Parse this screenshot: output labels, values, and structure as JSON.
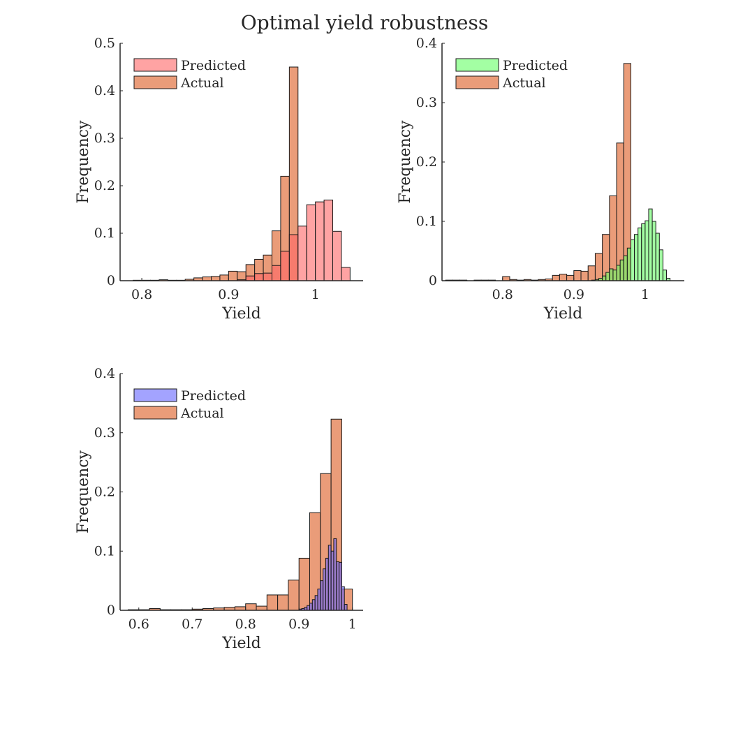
{
  "figure": {
    "title": "Optimal yield robustness"
  },
  "colors": {
    "axis": "#262626",
    "actual": "#E8916A",
    "predicted_red": "#FF6666",
    "predicted_green": "#66FF66",
    "predicted_blue": "#6666FF",
    "bar_edge": "#1a1a1a"
  },
  "chart_data": [
    {
      "type": "bar",
      "subtype": "histogram",
      "xlabel": "Yield",
      "ylabel": "Frequency",
      "xlim": [
        0.775,
        1.055
      ],
      "ylim": [
        0,
        0.5
      ],
      "xticks": [
        0.8,
        0.9,
        1
      ],
      "xtick_labels": [
        "0.8",
        "0.9",
        "1"
      ],
      "yticks": [
        0,
        0.1,
        0.2,
        0.3,
        0.4,
        0.5
      ],
      "ytick_labels": [
        "0",
        "0.1",
        "0.2",
        "0.3",
        "0.4",
        "0.5"
      ],
      "legend": {
        "placement": "top-left",
        "entries": [
          "Predicted",
          "Actual"
        ]
      },
      "series": [
        {
          "name": "Actual",
          "color_key": "actual",
          "alpha": 0.9,
          "bin_edges": [
            0.79,
            0.8,
            0.81,
            0.82,
            0.83,
            0.84,
            0.85,
            0.86,
            0.87,
            0.88,
            0.89,
            0.9,
            0.91,
            0.92,
            0.93,
            0.94,
            0.95,
            0.96,
            0.97,
            0.98
          ],
          "values": [
            0.001,
            0.001,
            0.001,
            0.002,
            0.001,
            0.001,
            0.003,
            0.006,
            0.008,
            0.009,
            0.012,
            0.02,
            0.019,
            0.034,
            0.045,
            0.054,
            0.105,
            0.22,
            0.45
          ]
        },
        {
          "name": "Predicted",
          "color_key": "predicted_red",
          "alpha": 0.6,
          "bin_edges": [
            0.91,
            0.92,
            0.93,
            0.94,
            0.95,
            0.96,
            0.97,
            0.98,
            0.99,
            1.0,
            1.01,
            1.02,
            1.03,
            1.04
          ],
          "values": [
            0.002,
            0.01,
            0.015,
            0.016,
            0.032,
            0.062,
            0.097,
            0.115,
            0.16,
            0.166,
            0.17,
            0.104,
            0.028
          ]
        }
      ]
    },
    {
      "type": "bar",
      "subtype": "histogram",
      "xlabel": "Yield",
      "ylabel": "Frequency",
      "xlim": [
        0.715,
        1.055
      ],
      "ylim": [
        0,
        0.4
      ],
      "xticks": [
        0.8,
        0.9,
        1
      ],
      "xtick_labels": [
        "0.8",
        "0.9",
        "1"
      ],
      "yticks": [
        0,
        0.1,
        0.2,
        0.3,
        0.4
      ],
      "ytick_labels": [
        "0",
        "0.1",
        "0.2",
        "0.3",
        "0.4"
      ],
      "legend": {
        "placement": "top-left",
        "entries": [
          "Predicted",
          "Actual"
        ]
      },
      "series": [
        {
          "name": "Actual",
          "color_key": "actual",
          "alpha": 0.9,
          "bin_edges": [
            0.7,
            0.71,
            0.72,
            0.73,
            0.74,
            0.75,
            0.76,
            0.77,
            0.78,
            0.79,
            0.8,
            0.81,
            0.82,
            0.83,
            0.84,
            0.85,
            0.86,
            0.87,
            0.88,
            0.89,
            0.9,
            0.91,
            0.92,
            0.93,
            0.94,
            0.95,
            0.96,
            0.97,
            0.98
          ],
          "values": [
            0.0,
            0.0,
            0.001,
            0.001,
            0.001,
            0.0,
            0.001,
            0.001,
            0.001,
            0.0,
            0.007,
            0.002,
            0.001,
            0.002,
            0.001,
            0.002,
            0.003,
            0.009,
            0.011,
            0.009,
            0.017,
            0.016,
            0.025,
            0.046,
            0.078,
            0.143,
            0.232,
            0.366
          ]
        },
        {
          "name": "Predicted",
          "color_key": "predicted_green",
          "alpha": 0.6,
          "bin_edges": [
            0.925,
            0.93,
            0.935,
            0.94,
            0.945,
            0.95,
            0.955,
            0.96,
            0.965,
            0.97,
            0.975,
            0.98,
            0.985,
            0.99,
            0.995,
            1.0,
            1.005,
            1.01,
            1.015,
            1.02,
            1.025,
            1.03,
            1.035
          ],
          "values": [
            0.001,
            0.002,
            0.004,
            0.008,
            0.014,
            0.02,
            0.018,
            0.026,
            0.035,
            0.042,
            0.055,
            0.069,
            0.078,
            0.089,
            0.096,
            0.101,
            0.121,
            0.1,
            0.08,
            0.052,
            0.018,
            0.004
          ]
        }
      ]
    },
    {
      "type": "bar",
      "subtype": "histogram",
      "xlabel": "Yield",
      "ylabel": "Frequency",
      "xlim": [
        0.565,
        1.02
      ],
      "ylim": [
        0,
        0.4
      ],
      "xticks": [
        0.6,
        0.7,
        0.8,
        0.9,
        1
      ],
      "xtick_labels": [
        "0.6",
        "0.7",
        "0.8",
        "0.9",
        "1"
      ],
      "yticks": [
        0,
        0.1,
        0.2,
        0.3,
        0.4
      ],
      "ytick_labels": [
        "0",
        "0.1",
        "0.2",
        "0.3",
        "0.4"
      ],
      "legend": {
        "placement": "top-left",
        "entries": [
          "Predicted",
          "Actual"
        ]
      },
      "series": [
        {
          "name": "Actual",
          "color_key": "actual",
          "alpha": 0.9,
          "bin_edges": [
            0.58,
            0.6,
            0.62,
            0.64,
            0.66,
            0.68,
            0.7,
            0.72,
            0.74,
            0.76,
            0.78,
            0.8,
            0.82,
            0.84,
            0.86,
            0.88,
            0.9,
            0.92,
            0.94,
            0.96,
            0.98,
            1.0
          ],
          "values": [
            0.001,
            0.001,
            0.003,
            0.001,
            0.001,
            0.001,
            0.002,
            0.003,
            0.004,
            0.005,
            0.006,
            0.011,
            0.007,
            0.026,
            0.026,
            0.051,
            0.088,
            0.165,
            0.231,
            0.323,
            0.036
          ]
        },
        {
          "name": "Predicted",
          "color_key": "predicted_blue",
          "alpha": 0.6,
          "bin_edges": [
            0.9,
            0.905,
            0.91,
            0.915,
            0.92,
            0.925,
            0.93,
            0.935,
            0.94,
            0.945,
            0.95,
            0.955,
            0.96,
            0.965,
            0.97,
            0.975,
            0.98,
            0.985,
            0.99
          ],
          "values": [
            0.002,
            0.003,
            0.005,
            0.008,
            0.012,
            0.018,
            0.025,
            0.036,
            0.05,
            0.07,
            0.088,
            0.11,
            0.1,
            0.121,
            0.082,
            0.081,
            0.04,
            0.01
          ]
        }
      ]
    }
  ]
}
